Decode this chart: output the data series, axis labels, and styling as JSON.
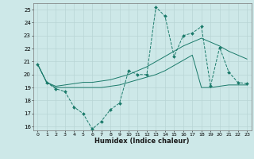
{
  "xlabel": "Humidex (Indice chaleur)",
  "bg_color": "#cde8e8",
  "grid_color": "#b8d5d5",
  "line_color": "#1a7a6a",
  "xlim": [
    -0.5,
    23.5
  ],
  "ylim": [
    15.7,
    25.5
  ],
  "yticks": [
    16,
    17,
    18,
    19,
    20,
    21,
    22,
    23,
    24,
    25
  ],
  "xticks": [
    0,
    1,
    2,
    3,
    4,
    5,
    6,
    7,
    8,
    9,
    10,
    11,
    12,
    13,
    14,
    15,
    16,
    17,
    18,
    19,
    20,
    21,
    22,
    23
  ],
  "series1_x": [
    0,
    1,
    2,
    3,
    4,
    5,
    6,
    7,
    8,
    9,
    10,
    11,
    12,
    13,
    14,
    15,
    16,
    17,
    18,
    19,
    20,
    21,
    22,
    23
  ],
  "series1_y": [
    20.8,
    19.4,
    18.9,
    18.7,
    17.5,
    17.0,
    15.8,
    16.4,
    17.3,
    17.8,
    20.3,
    20.0,
    20.0,
    25.2,
    24.5,
    21.4,
    23.0,
    23.2,
    23.7,
    19.1,
    22.1,
    20.2,
    19.4,
    19.3
  ],
  "series2_x": [
    0,
    1,
    2,
    3,
    4,
    5,
    6,
    7,
    8,
    9,
    10,
    11,
    12,
    13,
    14,
    15,
    16,
    17,
    18,
    19,
    20,
    21,
    22,
    23
  ],
  "series2_y": [
    20.8,
    19.4,
    19.0,
    19.0,
    19.0,
    19.0,
    19.0,
    19.0,
    19.1,
    19.2,
    19.4,
    19.6,
    19.8,
    20.0,
    20.3,
    20.7,
    21.1,
    21.5,
    19.0,
    19.0,
    19.1,
    19.2,
    19.2,
    19.2
  ],
  "series3_x": [
    0,
    1,
    2,
    3,
    4,
    5,
    6,
    7,
    8,
    9,
    10,
    11,
    12,
    13,
    14,
    15,
    16,
    17,
    18,
    19,
    20,
    21,
    22,
    23
  ],
  "series3_y": [
    20.8,
    19.4,
    19.1,
    19.2,
    19.3,
    19.4,
    19.4,
    19.5,
    19.6,
    19.8,
    20.0,
    20.3,
    20.6,
    21.0,
    21.4,
    21.8,
    22.2,
    22.5,
    22.8,
    22.5,
    22.2,
    21.8,
    21.5,
    21.2
  ]
}
